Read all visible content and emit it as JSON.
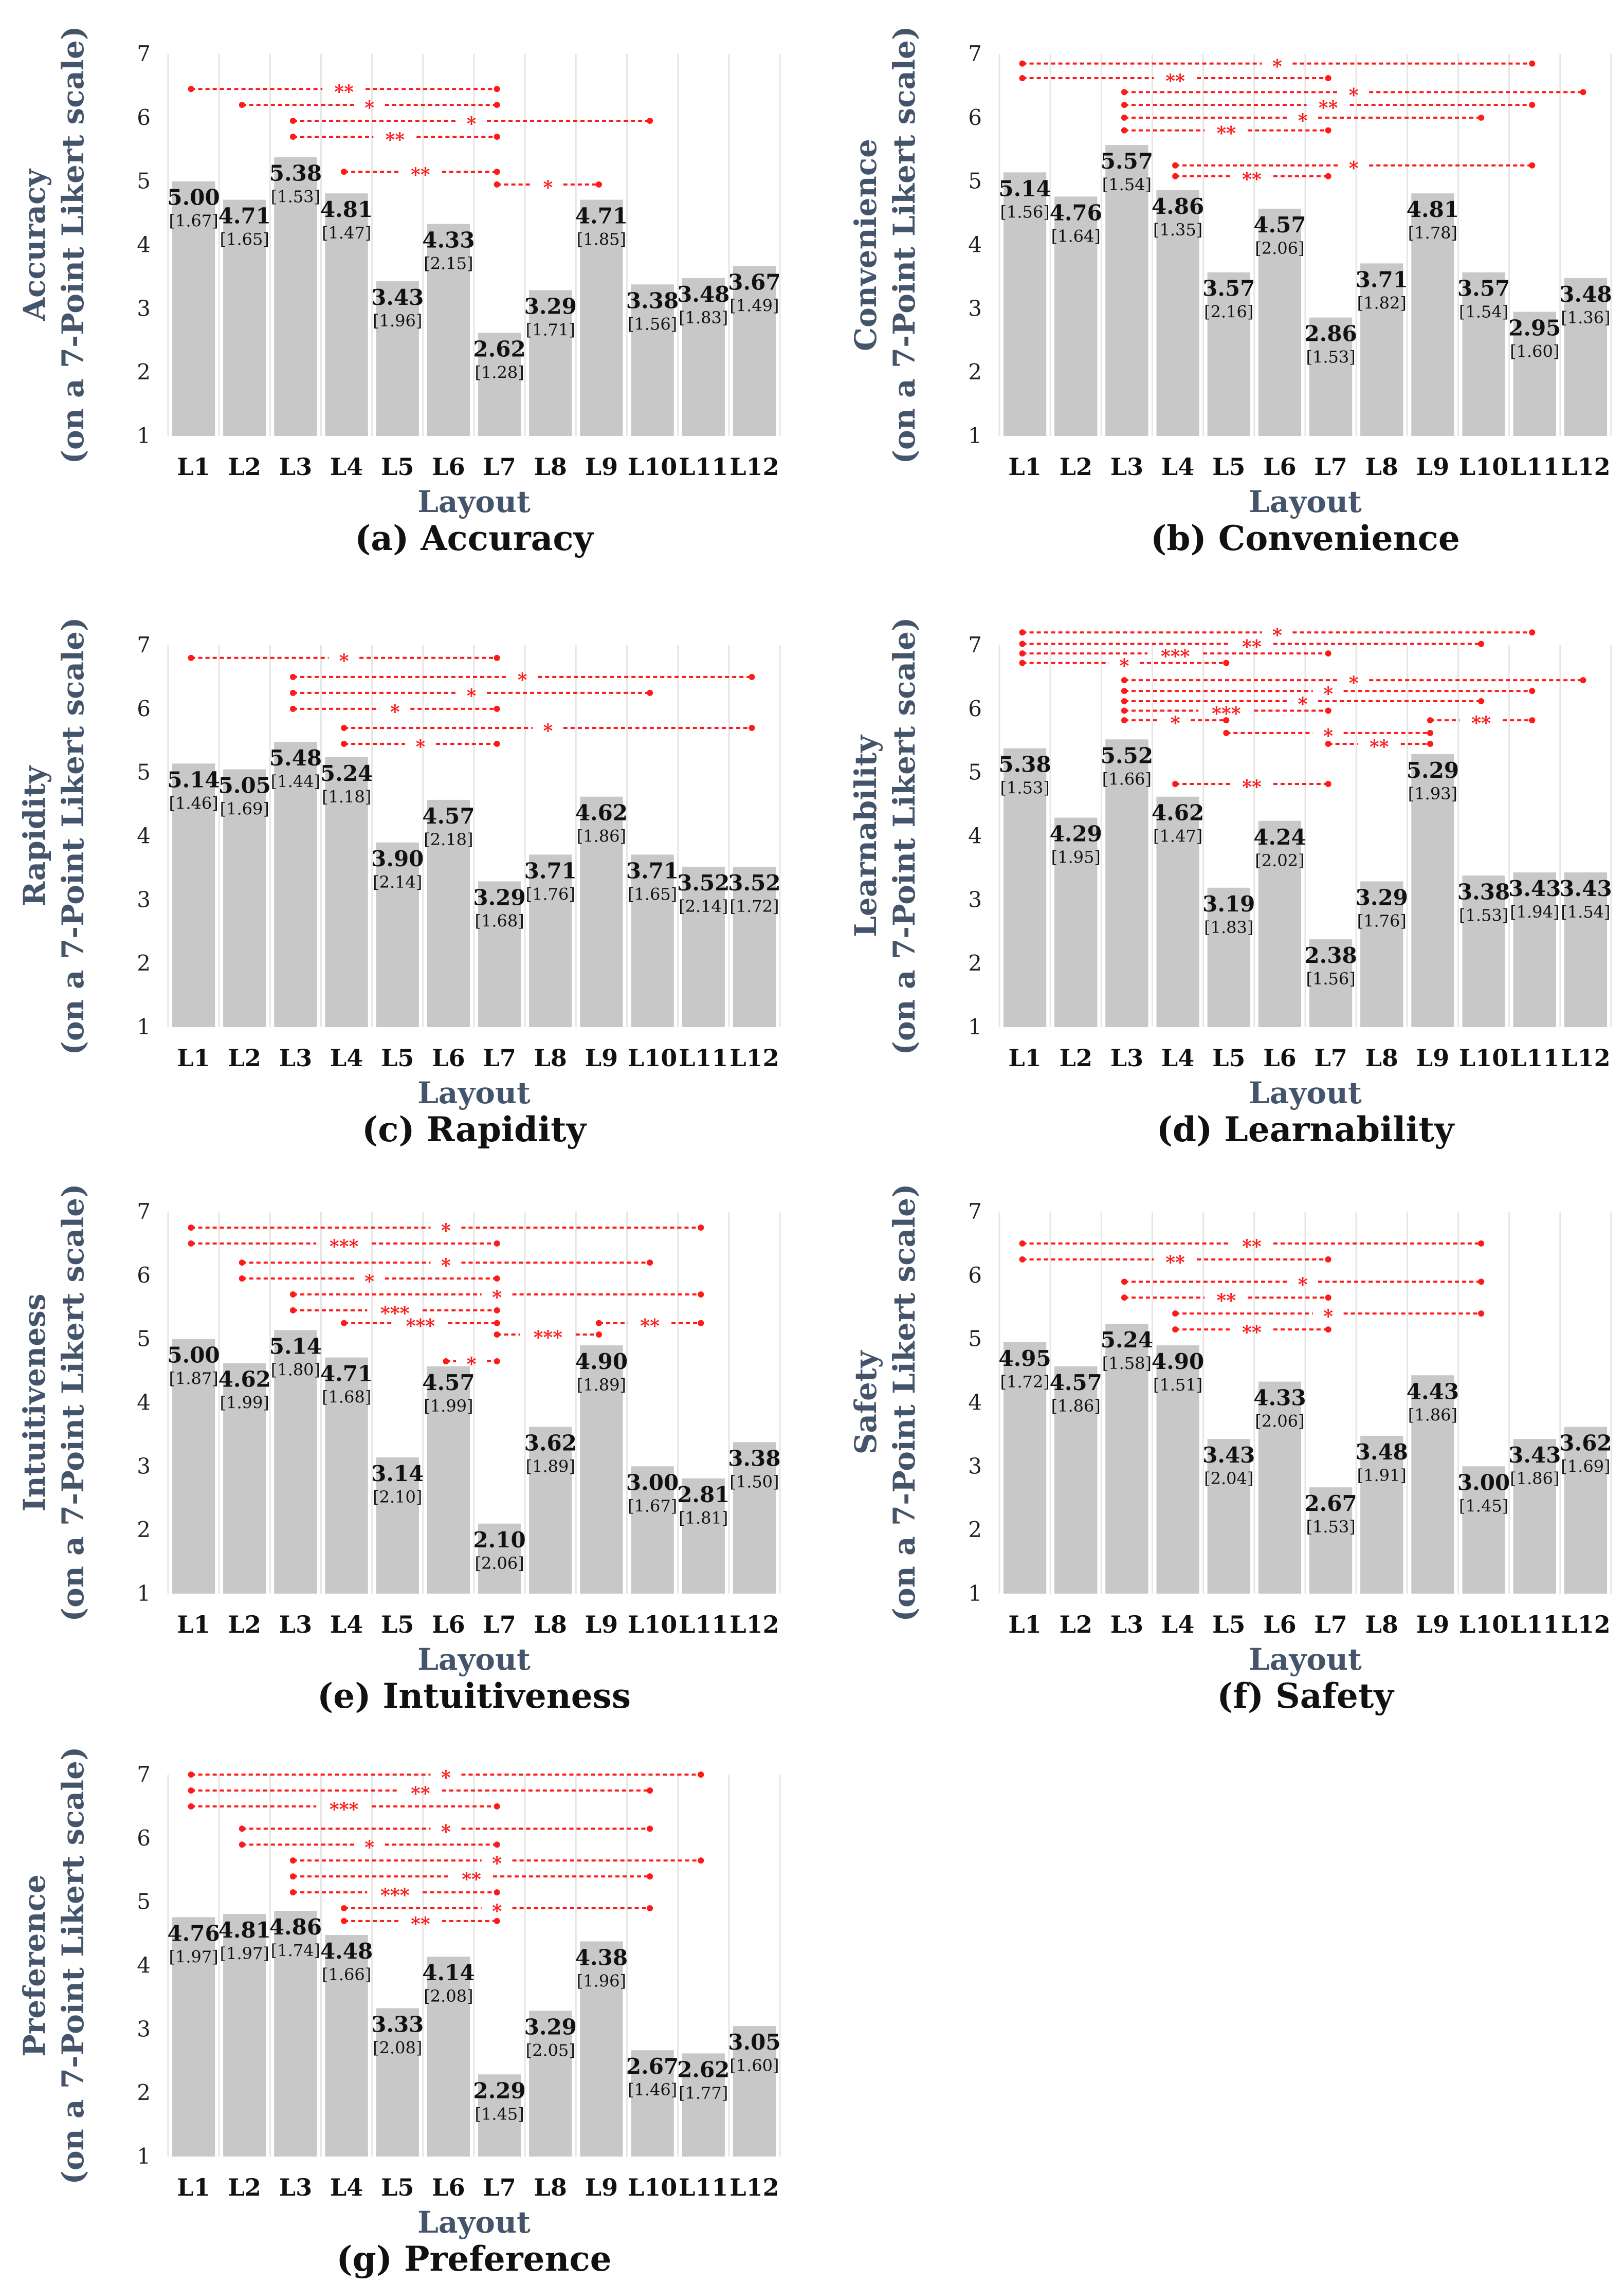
{
  "colors": {
    "bar": "#c8c8c8",
    "grid": "#e6e6e6",
    "bracket": "#ff1a1a",
    "axis_label": "#44546a"
  },
  "chart_data": [
    {
      "type": "bar",
      "title": "(a) Accuracy",
      "ylabel": "Accuracy",
      "ylabel2": "(on a 7-Point Likert scale)",
      "xlabel": "Layout",
      "ylim": [
        1,
        7
      ],
      "yticks": [
        1,
        2,
        3,
        4,
        5,
        6,
        7
      ],
      "categories": [
        "L1",
        "L2",
        "L3",
        "L4",
        "L5",
        "L6",
        "L7",
        "L8",
        "L9",
        "L10",
        "L11",
        "L12"
      ],
      "values": [
        5.0,
        4.71,
        5.38,
        4.81,
        3.43,
        4.33,
        2.62,
        3.29,
        4.71,
        3.38,
        3.48,
        3.67
      ],
      "sd": [
        1.67,
        1.65,
        1.53,
        1.47,
        1.96,
        2.15,
        1.28,
        1.71,
        1.85,
        1.56,
        1.83,
        1.49
      ],
      "significance": [
        [
          "L1",
          "L7",
          "**"
        ],
        [
          "L2",
          "L7",
          "*"
        ],
        [
          "L3",
          "L10",
          "*"
        ],
        [
          "L3",
          "L7",
          "**"
        ],
        [
          "L4",
          "L7",
          "**"
        ],
        [
          "L7",
          "L9",
          "*"
        ]
      ]
    },
    {
      "type": "bar",
      "title": "(b) Convenience",
      "ylabel": "Convenience",
      "ylabel2": "(on a 7-Point Likert scale)",
      "xlabel": "Layout",
      "ylim": [
        1,
        7
      ],
      "yticks": [
        1,
        2,
        3,
        4,
        5,
        6,
        7
      ],
      "categories": [
        "L1",
        "L2",
        "L3",
        "L4",
        "L5",
        "L6",
        "L7",
        "L8",
        "L9",
        "L10",
        "L11",
        "L12"
      ],
      "values": [
        5.14,
        4.76,
        5.57,
        4.86,
        3.57,
        4.57,
        2.86,
        3.71,
        4.81,
        3.57,
        2.95,
        3.48
      ],
      "sd": [
        1.56,
        1.64,
        1.54,
        1.35,
        2.16,
        2.06,
        1.53,
        1.82,
        1.78,
        1.54,
        1.6,
        1.36
      ],
      "significance": [
        [
          "L1",
          "L11",
          "*"
        ],
        [
          "L1",
          "L7",
          "**"
        ],
        [
          "L3",
          "L12",
          "*"
        ],
        [
          "L3",
          "L11",
          "**"
        ],
        [
          "L3",
          "L10",
          "*"
        ],
        [
          "L3",
          "L7",
          "**"
        ],
        [
          "L4",
          "L11",
          "*"
        ],
        [
          "L4",
          "L7",
          "**"
        ]
      ]
    },
    {
      "type": "bar",
      "title": "(c) Rapidity",
      "ylabel": "Rapidity",
      "ylabel2": "(on a 7-Point Likert scale)",
      "xlabel": "Layout",
      "ylim": [
        1,
        7
      ],
      "yticks": [
        1,
        2,
        3,
        4,
        5,
        6,
        7
      ],
      "categories": [
        "L1",
        "L2",
        "L3",
        "L4",
        "L5",
        "L6",
        "L7",
        "L8",
        "L9",
        "L10",
        "L11",
        "L12"
      ],
      "values": [
        5.14,
        5.05,
        5.48,
        5.24,
        3.9,
        4.57,
        3.29,
        3.71,
        4.62,
        3.71,
        3.52,
        3.52
      ],
      "sd": [
        1.46,
        1.69,
        1.44,
        1.18,
        2.14,
        2.18,
        1.68,
        1.76,
        1.86,
        1.65,
        2.14,
        1.72
      ],
      "significance": [
        [
          "L1",
          "L7",
          "*"
        ],
        [
          "L3",
          "L12",
          "*"
        ],
        [
          "L3",
          "L10",
          "*"
        ],
        [
          "L3",
          "L7",
          "*"
        ],
        [
          "L4",
          "L12",
          "*"
        ],
        [
          "L4",
          "L7",
          "*"
        ]
      ]
    },
    {
      "type": "bar",
      "title": "(d) Learnability",
      "ylabel": "Learnability",
      "ylabel2": "(on a 7-Point Likert scale)",
      "xlabel": "Layout",
      "ylim": [
        1,
        7
      ],
      "yticks": [
        1,
        2,
        3,
        4,
        5,
        6,
        7
      ],
      "categories": [
        "L1",
        "L2",
        "L3",
        "L4",
        "L5",
        "L6",
        "L7",
        "L8",
        "L9",
        "L10",
        "L11",
        "L12"
      ],
      "values": [
        5.38,
        4.29,
        5.52,
        4.62,
        3.19,
        4.24,
        2.38,
        3.29,
        5.29,
        3.38,
        3.43,
        3.43
      ],
      "sd": [
        1.53,
        1.95,
        1.66,
        1.47,
        1.83,
        2.02,
        1.56,
        1.76,
        1.93,
        1.53,
        1.94,
        1.54
      ],
      "significance": [
        [
          "L1",
          "L11",
          "*"
        ],
        [
          "L1",
          "L10",
          "**"
        ],
        [
          "L1",
          "L7",
          "***"
        ],
        [
          "L1",
          "L5",
          "*"
        ],
        [
          "L3",
          "L12",
          "*"
        ],
        [
          "L3",
          "L11",
          "*"
        ],
        [
          "L3",
          "L10",
          "*"
        ],
        [
          "L3",
          "L7",
          "***"
        ],
        [
          "L3",
          "L5",
          "*"
        ],
        [
          "L9",
          "L11",
          "**"
        ],
        [
          "L5",
          "L9",
          "*"
        ],
        [
          "L7",
          "L9",
          "**"
        ],
        [
          "L4",
          "L7",
          "**"
        ]
      ]
    },
    {
      "type": "bar",
      "title": "(e) Intuitiveness",
      "ylabel": "Intuitiveness",
      "ylabel2": "(on a 7-Point Likert scale)",
      "xlabel": "Layout",
      "ylim": [
        1,
        7
      ],
      "yticks": [
        1,
        2,
        3,
        4,
        5,
        6,
        7
      ],
      "categories": [
        "L1",
        "L2",
        "L3",
        "L4",
        "L5",
        "L6",
        "L7",
        "L8",
        "L9",
        "L10",
        "L11",
        "L12"
      ],
      "values": [
        5.0,
        4.62,
        5.14,
        4.71,
        3.14,
        4.57,
        2.1,
        3.62,
        4.9,
        3.0,
        2.81,
        3.38
      ],
      "sd": [
        1.87,
        1.99,
        1.8,
        1.68,
        2.1,
        1.99,
        2.06,
        1.89,
        1.89,
        1.67,
        1.81,
        1.5
      ],
      "significance": [
        [
          "L1",
          "L11",
          "*"
        ],
        [
          "L1",
          "L7",
          "***"
        ],
        [
          "L2",
          "L10",
          "*"
        ],
        [
          "L2",
          "L7",
          "*"
        ],
        [
          "L3",
          "L11",
          "*"
        ],
        [
          "L3",
          "L7",
          "***"
        ],
        [
          "L4",
          "L7",
          "***"
        ],
        [
          "L9",
          "L11",
          "**"
        ],
        [
          "L7",
          "L9",
          "***"
        ],
        [
          "L6",
          "L7",
          "*"
        ]
      ]
    },
    {
      "type": "bar",
      "title": "(f) Safety",
      "ylabel": "Safety",
      "ylabel2": "(on a 7-Point Likert scale)",
      "xlabel": "Layout",
      "ylim": [
        1,
        7
      ],
      "yticks": [
        1,
        2,
        3,
        4,
        5,
        6,
        7
      ],
      "categories": [
        "L1",
        "L2",
        "L3",
        "L4",
        "L5",
        "L6",
        "L7",
        "L8",
        "L9",
        "L10",
        "L11",
        "L12"
      ],
      "values": [
        4.95,
        4.57,
        5.24,
        4.9,
        3.43,
        4.33,
        2.67,
        3.48,
        4.43,
        3.0,
        3.43,
        3.62
      ],
      "sd": [
        1.72,
        1.86,
        1.58,
        1.51,
        2.04,
        2.06,
        1.53,
        1.91,
        1.86,
        1.45,
        1.86,
        1.69
      ],
      "significance": [
        [
          "L1",
          "L10",
          "**"
        ],
        [
          "L1",
          "L7",
          "**"
        ],
        [
          "L3",
          "L10",
          "*"
        ],
        [
          "L3",
          "L7",
          "**"
        ],
        [
          "L4",
          "L10",
          "*"
        ],
        [
          "L4",
          "L7",
          "**"
        ]
      ]
    },
    {
      "type": "bar",
      "title": "(g) Preference",
      "ylabel": "Preference",
      "ylabel2": "(on a 7-Point Likert scale)",
      "xlabel": "Layout",
      "ylim": [
        1,
        7
      ],
      "yticks": [
        1,
        2,
        3,
        4,
        5,
        6,
        7
      ],
      "categories": [
        "L1",
        "L2",
        "L3",
        "L4",
        "L5",
        "L6",
        "L7",
        "L8",
        "L9",
        "L10",
        "L11",
        "L12"
      ],
      "values": [
        4.76,
        4.81,
        4.86,
        4.48,
        3.33,
        4.14,
        2.29,
        3.29,
        4.38,
        2.67,
        2.62,
        3.05
      ],
      "sd": [
        1.97,
        1.97,
        1.74,
        1.66,
        2.08,
        2.08,
        1.45,
        2.05,
        1.96,
        1.46,
        1.77,
        1.6
      ],
      "significance": [
        [
          "L1",
          "L11",
          "*"
        ],
        [
          "L1",
          "L10",
          "**"
        ],
        [
          "L1",
          "L7",
          "***"
        ],
        [
          "L2",
          "L10",
          "*"
        ],
        [
          "L2",
          "L7",
          "*"
        ],
        [
          "L3",
          "L11",
          "*"
        ],
        [
          "L3",
          "L10",
          "**"
        ],
        [
          "L3",
          "L7",
          "***"
        ],
        [
          "L4",
          "L10",
          "*"
        ],
        [
          "L4",
          "L7",
          "**"
        ]
      ]
    }
  ]
}
